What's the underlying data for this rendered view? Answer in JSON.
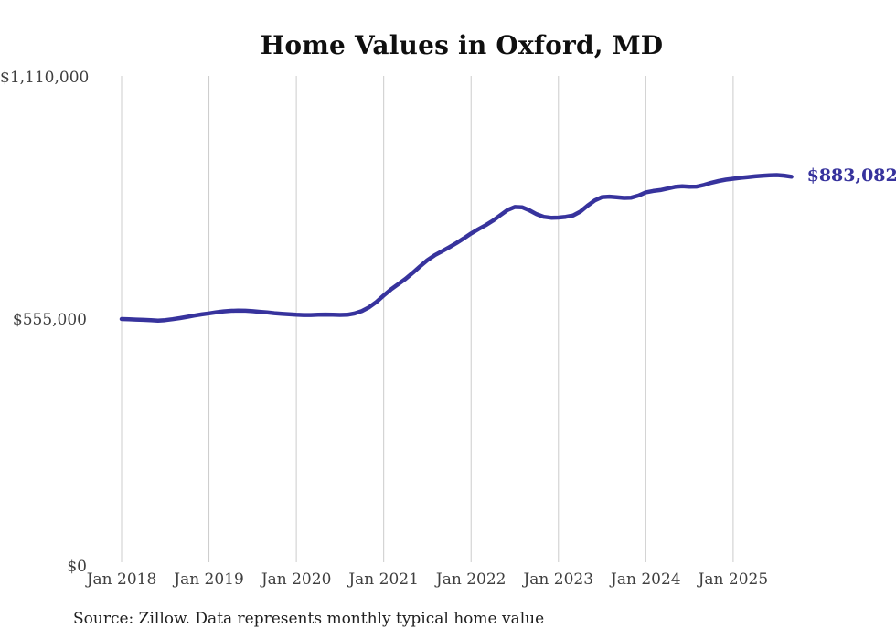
{
  "title": "Home Values in Oxford, MD",
  "source_note": "Source: Zillow. Data represents monthly typical home value",
  "colors": {
    "line": "#37339d",
    "end_label": "#37339d",
    "grid": "#cccccc",
    "title_text": "#0f0f0f",
    "axis_text": "#3f3f3f",
    "source_text": "#1f1f1f",
    "background": "#ffffff"
  },
  "chart_data": {
    "type": "line",
    "title": "Home Values in Oxford, MD",
    "series_name": "Monthly typical home value",
    "start_month": "2018-01",
    "end_month": "2025-09",
    "end_label": "$883,082",
    "final_value": 883082,
    "ylim": [
      0,
      1110000
    ],
    "grid": "vertical-only",
    "legend": "none",
    "x_tick_labels": [
      "Jan 2018",
      "Jan 2019",
      "Jan 2020",
      "Jan 2021",
      "Jan 2022",
      "Jan 2023",
      "Jan 2024",
      "Jan 2025"
    ],
    "y_ticks": [
      {
        "label": "$1,110,000",
        "value": 1110000
      },
      {
        "label": "$555,000",
        "value": 555000
      },
      {
        "label": "$0",
        "value": 0
      }
    ],
    "values": [
      557000,
      556400,
      555800,
      555300,
      554400,
      553600,
      554600,
      556600,
      559200,
      562200,
      565100,
      567700,
      570100,
      572600,
      574600,
      576000,
      576500,
      576100,
      575100,
      573600,
      572100,
      570600,
      569200,
      567900,
      566900,
      566300,
      566400,
      566900,
      567400,
      567100,
      566600,
      567000,
      569900,
      575500,
      584100,
      596200,
      611100,
      624900,
      637200,
      649300,
      663100,
      677900,
      691900,
      703200,
      712300,
      721400,
      731300,
      742100,
      753100,
      762900,
      772200,
      782400,
      794900,
      806700,
      813900,
      813300,
      806300,
      797400,
      791300,
      789100,
      789600,
      791200,
      794300,
      803100,
      816800,
      828900,
      836400,
      837600,
      836100,
      834600,
      835200,
      840100,
      847400,
      850600,
      852600,
      856100,
      859900,
      861400,
      860100,
      860600,
      864400,
      869400,
      873400,
      876400,
      878600,
      880600,
      882400,
      884000,
      885400,
      886400,
      886900,
      885800,
      883082
    ]
  }
}
